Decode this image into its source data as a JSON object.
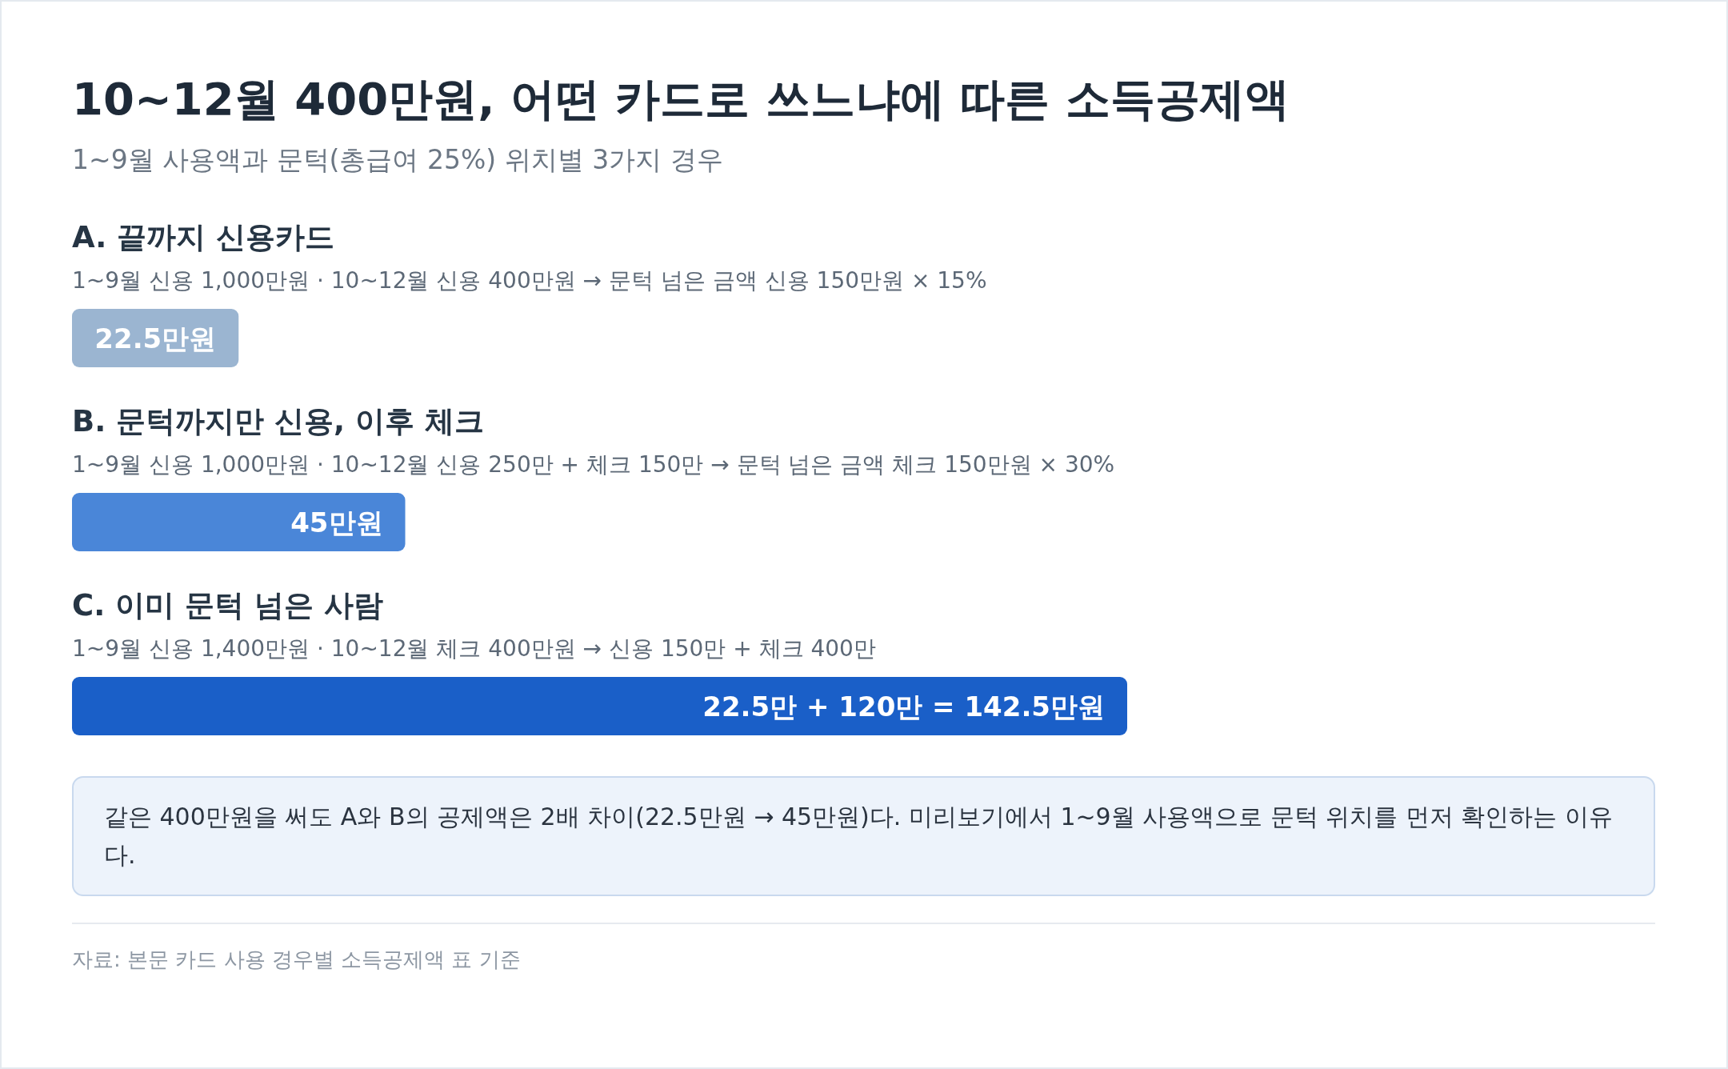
{
  "chart_data": {
    "type": "bar",
    "orientation": "horizontal",
    "title": "10~12월 400만원, 어떤 카드로 쓰느냐에 따른 소득공제액",
    "subtitle": "1~9월 사용액과 문턱(총급여 25%) 위치별 3가지 경우",
    "categories": [
      "A. 끝까지 신용카드",
      "B. 문턱까지만 신용, 이후 체크",
      "C. 이미 문턱 넘은 사람"
    ],
    "values": [
      22.5,
      45,
      142.5
    ],
    "colors": [
      "#9bb5d1",
      "#4a86d8",
      "#1a5fc8"
    ],
    "value_labels": [
      "22.5만원",
      "45만원",
      "22.5만 + 120만 = 142.5만원"
    ],
    "annotations": [
      "1~9월 신용 1,000만원 · 10~12월 신용 400만원 → 문턱 넘은 금액 신용 150만원 × 15%",
      "1~9월 신용 1,000만원 · 10~12월 신용 250만 + 체크 150만 → 문턱 넘은 금액 체크 150만원 × 30%",
      "1~9월 신용 1,400만원 · 10~12월 체크 400만원 → 신용 150만 + 체크 400만",
      "같은 400만원을 써도 A와 B의 공제액은 2배 차이(22.5만원 → 45만원)다. 미리보기에서 1~9월 사용액으로 문턱 위치를 먼저 확인하는 이유다.",
      "자료: 본문 카드 사용 경우별 소득공제액 표 기준"
    ]
  }
}
